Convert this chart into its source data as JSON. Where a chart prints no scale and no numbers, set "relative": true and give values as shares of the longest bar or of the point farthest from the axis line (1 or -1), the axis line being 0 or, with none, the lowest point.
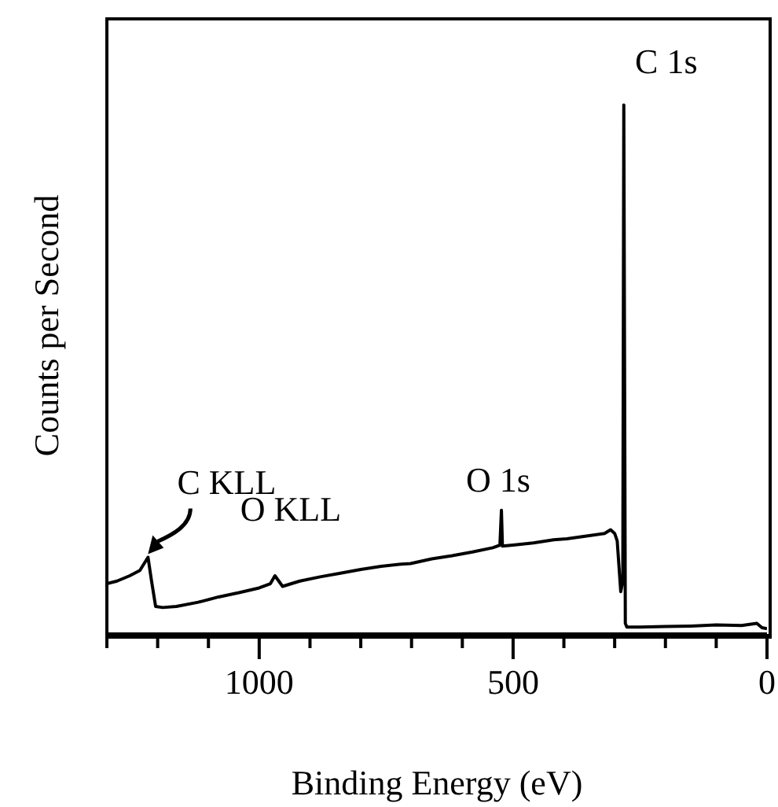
{
  "chart_data": {
    "type": "line",
    "xlabel": "Binding Energy (eV)",
    "ylabel": "Counts per Second",
    "relative": true,
    "xlim": [
      1300,
      0
    ],
    "xticks": [
      {
        "value": 1300,
        "label": null
      },
      {
        "value": 1200,
        "label": null
      },
      {
        "value": 1100,
        "label": null
      },
      1000,
      {
        "value": 900,
        "label": null
      },
      {
        "value": 800,
        "label": null
      },
      {
        "value": 700,
        "label": null
      },
      {
        "value": 600,
        "label": null
      },
      500,
      {
        "value": 400,
        "label": null
      },
      {
        "value": 300,
        "label": null
      },
      {
        "value": 200,
        "label": null
      },
      {
        "value": 100,
        "label": null
      },
      0
    ],
    "series": [
      {
        "color": "#000000",
        "x": [
          1300,
          1280,
          1255,
          1235,
          1219,
          1212,
          1204,
          1190,
          1163,
          1120,
          1080,
          1040,
          1000,
          978,
          969,
          954,
          920,
          880,
          840,
          800,
          760,
          720,
          702,
          660,
          620,
          580,
          540,
          526,
          523,
          521,
          500,
          460,
          420,
          394,
          350,
          320,
          308,
          300,
          295,
          288,
          284,
          282,
          279,
          276,
          250,
          200,
          150,
          100,
          50,
          20,
          10,
          0
        ],
        "values": [
          0.095,
          0.1,
          0.11,
          0.12,
          0.145,
          0.1,
          0.052,
          0.05,
          0.052,
          0.06,
          0.07,
          0.078,
          0.087,
          0.095,
          0.11,
          0.09,
          0.1,
          0.108,
          0.115,
          0.122,
          0.128,
          0.132,
          0.133,
          0.142,
          0.148,
          0.155,
          0.163,
          0.168,
          0.234,
          0.166,
          0.168,
          0.172,
          0.178,
          0.18,
          0.186,
          0.19,
          0.197,
          0.19,
          0.176,
          0.08,
          0.1,
          1,
          0.02,
          0.013,
          0.013,
          0.014,
          0.015,
          0.017,
          0.016,
          0.02,
          0.012,
          0.01
        ]
      }
    ],
    "annotations": [
      {
        "text": "C 1s",
        "x": 282,
        "y": 1
      },
      {
        "text": "O 1s",
        "x": 523,
        "y": 0.234
      },
      {
        "text": "C KLL",
        "x": 1219,
        "y": 0.145
      },
      {
        "text": "O KLL",
        "x": 969,
        "y": 0.11
      }
    ],
    "grid": false,
    "marker": "none",
    "line_style": "solid"
  }
}
